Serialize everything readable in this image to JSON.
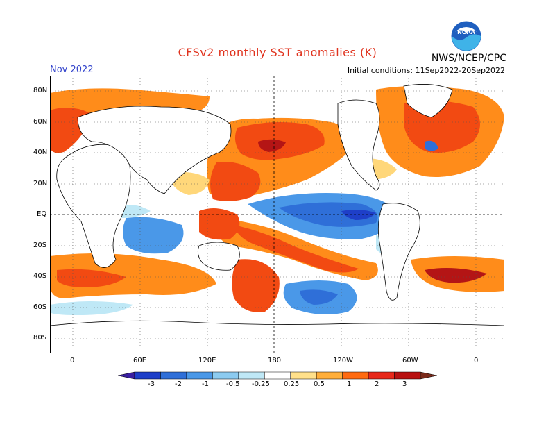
{
  "header": {
    "title": "CFSv2 monthly SST anomalies (K)",
    "month": "Nov 2022",
    "initial_conditions": "Initial conditions: 11Sep2022-20Sep2022",
    "agency": "NWS/NCEP/CPC",
    "logo_text": "NOAA"
  },
  "axes": {
    "lat_labels": [
      "80N",
      "60N",
      "40N",
      "20N",
      "EQ",
      "20S",
      "40S",
      "60S",
      "80S"
    ],
    "lon_labels": [
      "0",
      "60E",
      "120E",
      "180",
      "120W",
      "60W",
      "0"
    ]
  },
  "colorbar": {
    "labels": [
      "-3",
      "-2",
      "-1",
      "-0.5",
      "-0.25",
      "0.25",
      "0.5",
      "1",
      "2",
      "3"
    ],
    "colors": [
      "#3a1fa0",
      "#1e3fc8",
      "#2f6fd8",
      "#4a98e8",
      "#8ccbf0",
      "#bfe8f6",
      "#ffffff",
      "#ffe08a",
      "#ffae3a",
      "#ff6a10",
      "#e8281a",
      "#b81010",
      "#7a2a1a"
    ]
  },
  "palette": {
    "warm_light": "#ffd77a",
    "warm_mid": "#ff8c1a",
    "warm_strong": "#f24a12",
    "warm_deep": "#b41515",
    "cool_light": "#bfe8f6",
    "cool_mid": "#4a98e8",
    "cool_deep": "#1e3fc8",
    "land": "#ffffff",
    "coast": "#000000"
  }
}
